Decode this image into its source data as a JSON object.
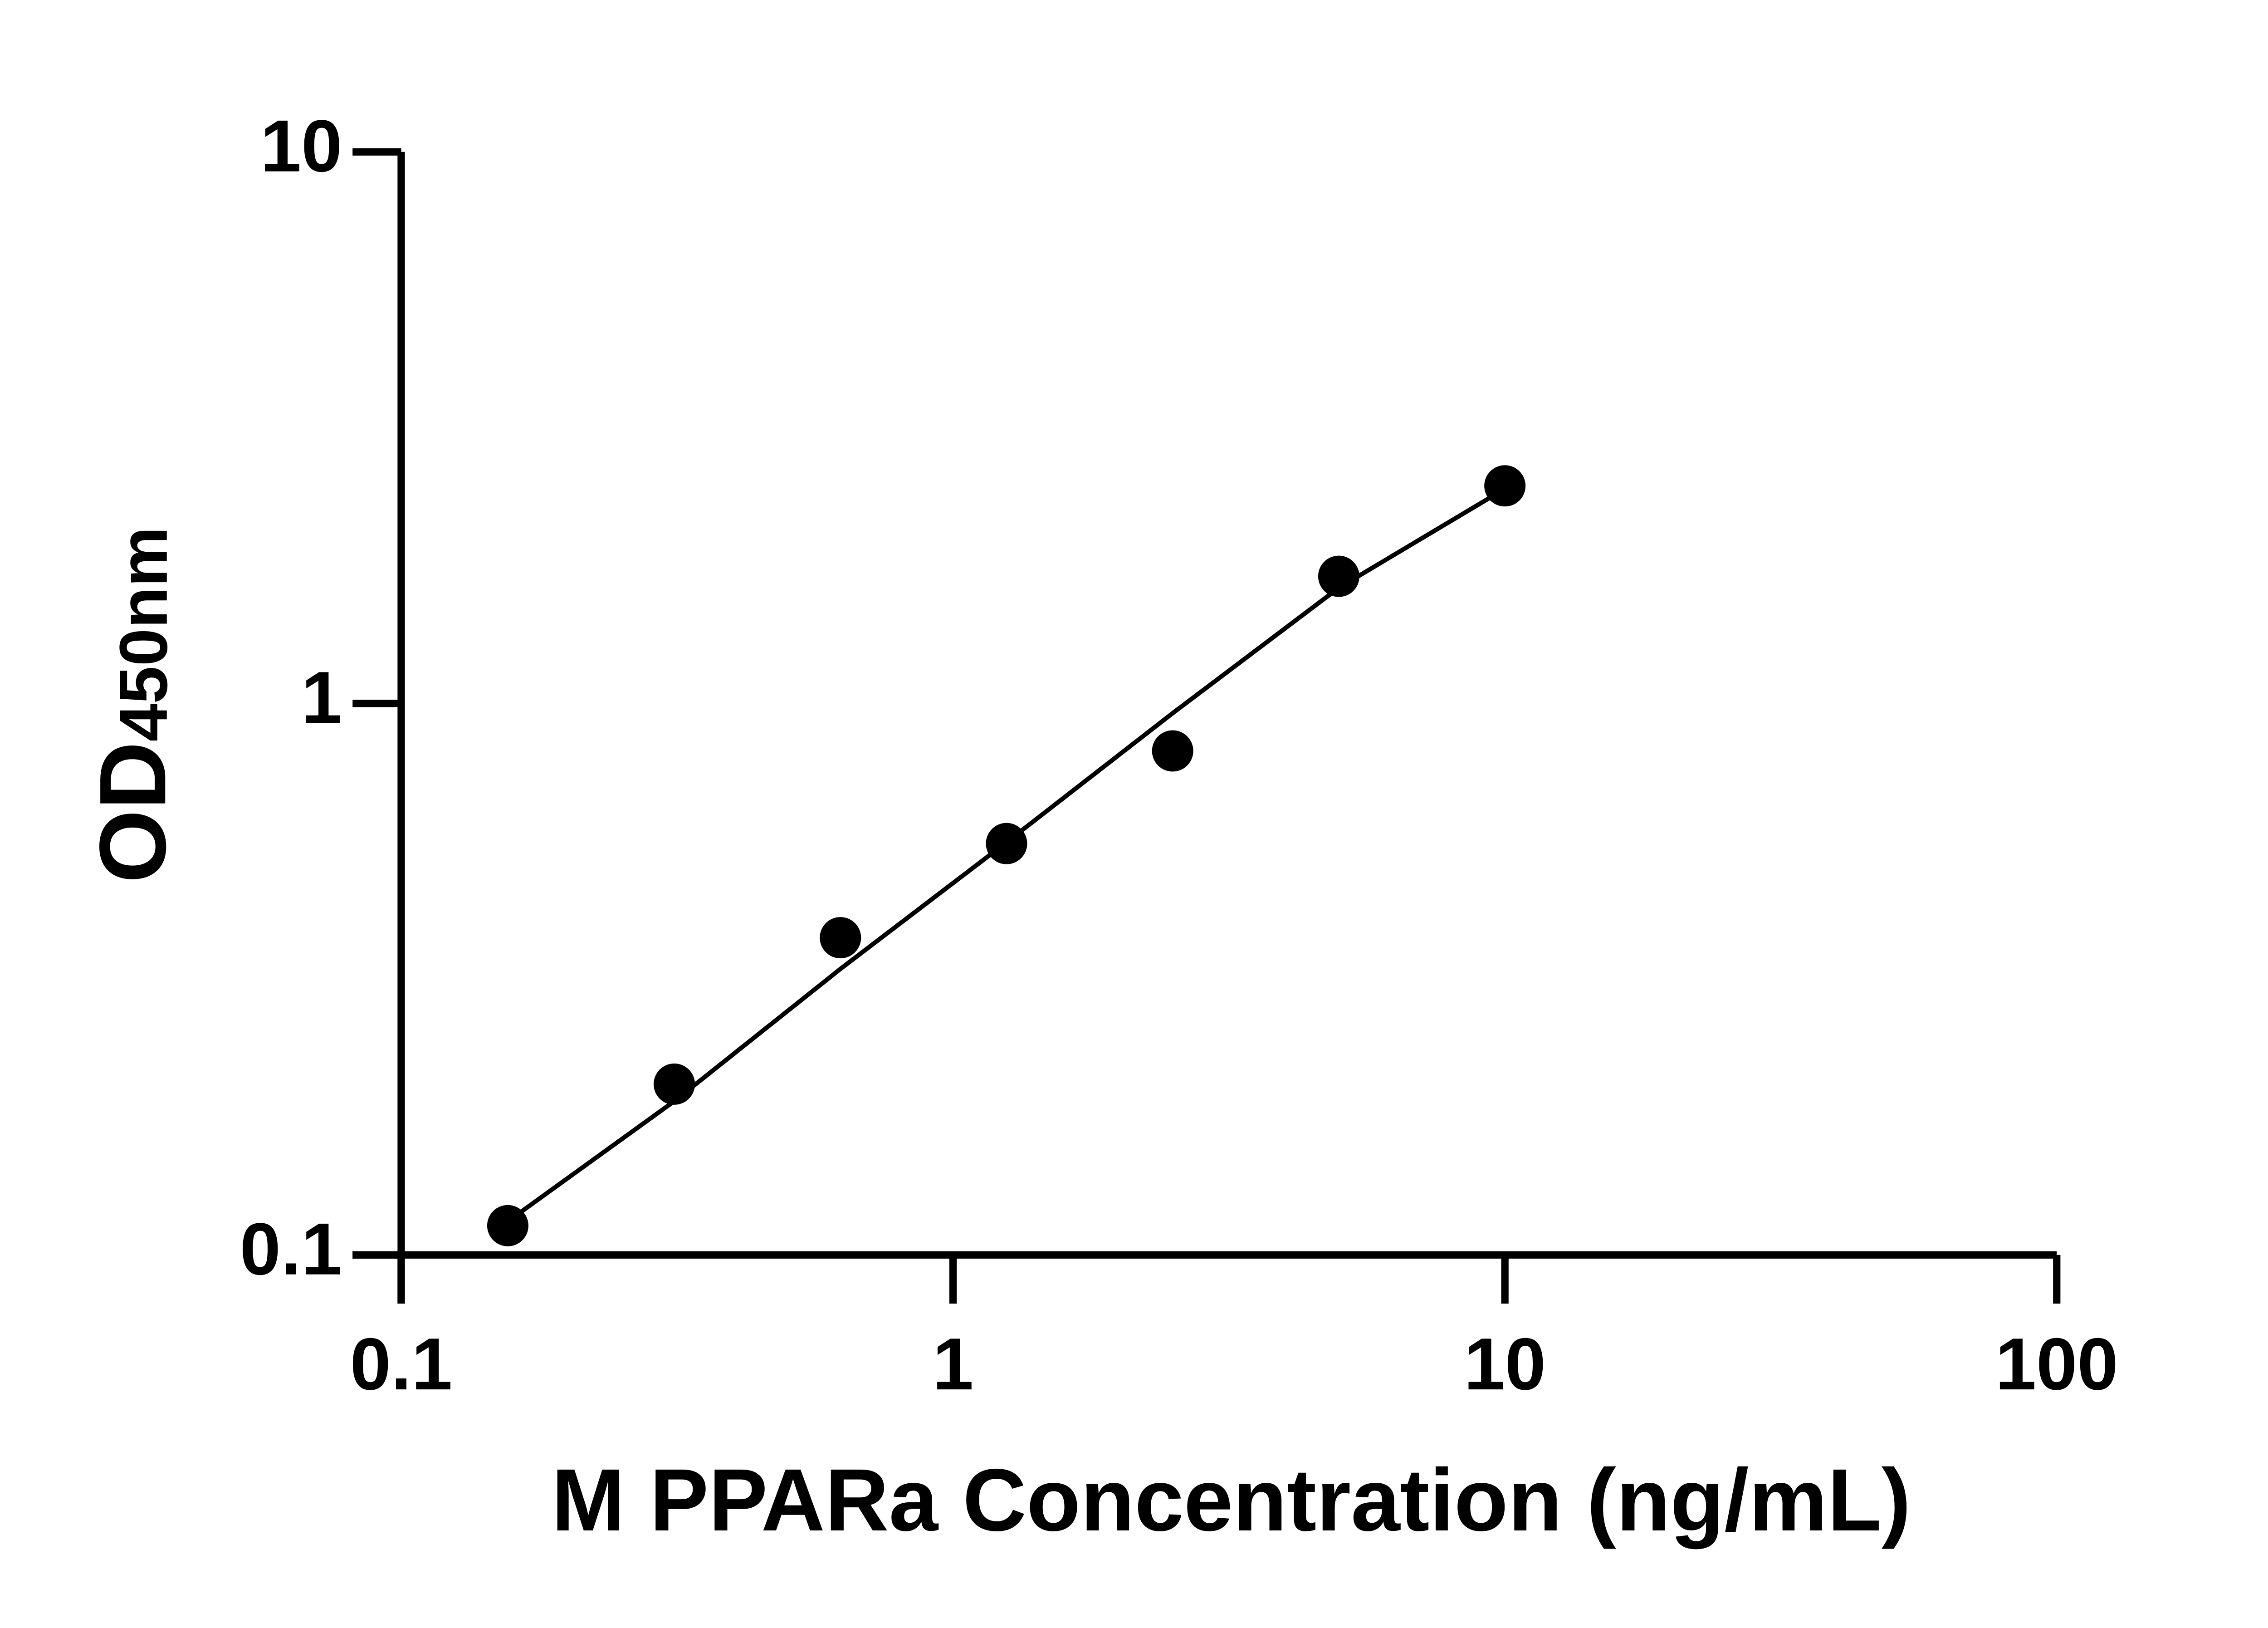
{
  "chart_data": {
    "type": "scatter",
    "log_x": true,
    "log_y": true,
    "x_label": "M PPARa Concentration (ng/mL)",
    "y_label": "OD",
    "y_label_sub": "450nm",
    "series": [
      {
        "color": "#000000",
        "x": [
          0.156,
          0.3125,
          0.625,
          1.25,
          2.5,
          5,
          10
        ],
        "values": [
          0.113,
          0.204,
          0.376,
          0.557,
          0.82,
          1.7,
          2.48
        ]
      }
    ],
    "fit": {
      "color": "#000000",
      "x": [
        0.156,
        0.3125,
        0.625,
        1.25,
        2.5,
        5,
        10
      ],
      "values": [
        0.115,
        0.19,
        0.33,
        0.56,
        0.96,
        1.62,
        2.45
      ]
    },
    "xlim": [
      0.1,
      100
    ],
    "xticks": [
      0.1,
      1,
      10,
      100
    ],
    "ylim": [
      0.1,
      10
    ],
    "yticks": [
      0.1,
      1,
      10
    ]
  }
}
